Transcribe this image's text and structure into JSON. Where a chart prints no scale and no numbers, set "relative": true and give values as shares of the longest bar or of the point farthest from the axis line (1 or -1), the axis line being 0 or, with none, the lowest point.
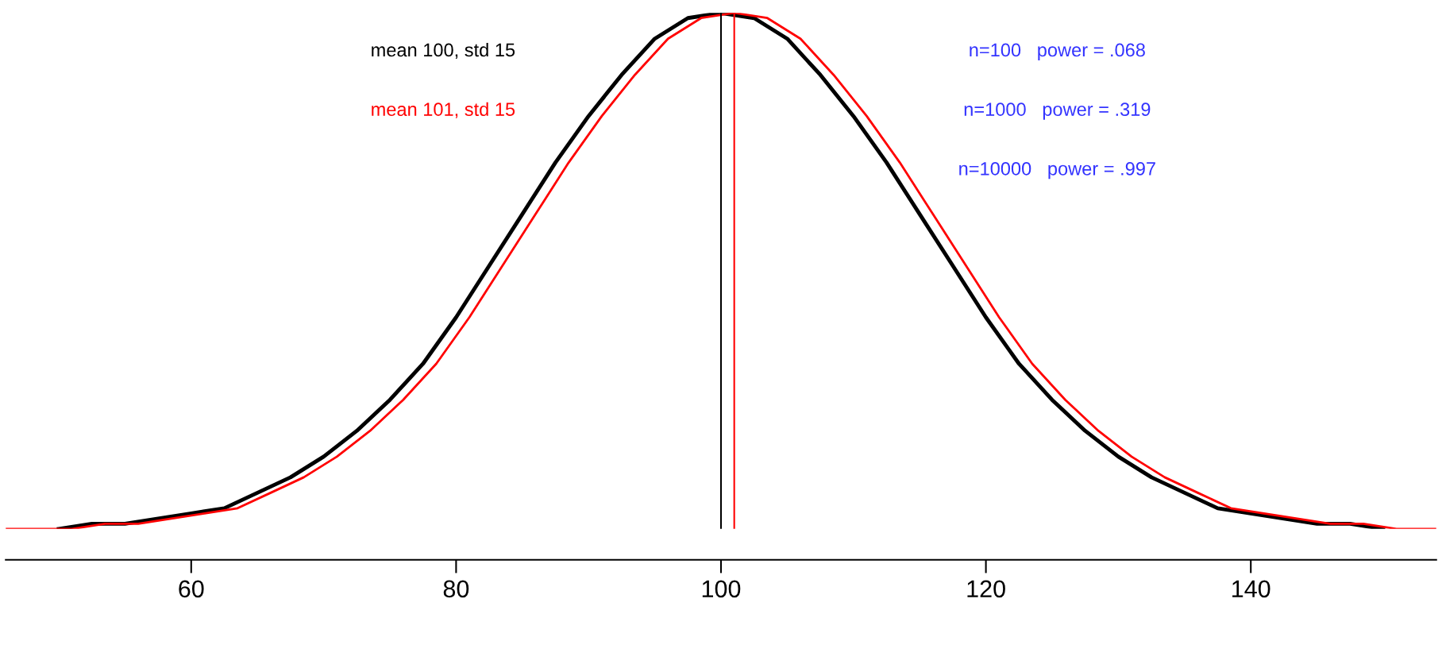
{
  "chart_data": {
    "type": "line",
    "relative": true,
    "xlim": [
      46,
      154
    ],
    "xticks": [
      60,
      80,
      100,
      120,
      140
    ],
    "series": [
      {
        "name": "mean 100, std 15",
        "color": "#000000",
        "x": [
          50,
          52.5,
          55,
          57.5,
          60,
          62.5,
          65,
          67.5,
          70,
          72.5,
          75,
          77.5,
          80,
          82.5,
          85,
          87.5,
          90,
          92.5,
          95,
          97.5,
          100,
          102.5,
          105,
          107.5,
          110,
          112.5,
          115,
          117.5,
          120,
          122.5,
          125,
          127.5,
          130,
          132.5,
          135,
          137.5,
          140,
          142.5,
          145,
          147.5,
          150
        ],
        "values": [
          0.0,
          0.01,
          0.01,
          0.02,
          0.03,
          0.04,
          0.07,
          0.1,
          0.14,
          0.19,
          0.25,
          0.32,
          0.41,
          0.51,
          0.61,
          0.71,
          0.8,
          0.88,
          0.95,
          0.99,
          1,
          0.99,
          0.95,
          0.88,
          0.8,
          0.71,
          0.61,
          0.51,
          0.41,
          0.32,
          0.25,
          0.19,
          0.14,
          0.1,
          0.07,
          0.04,
          0.03,
          0.02,
          0.01,
          0.01,
          0.0
        ]
      },
      {
        "name": "mean 101, std 15",
        "color": "#ff0000",
        "x": [
          46,
          48.5,
          51,
          53.5,
          56,
          58.5,
          61,
          63.5,
          66,
          68.5,
          71,
          73.5,
          76,
          78.5,
          81,
          83.5,
          86,
          88.5,
          91,
          93.5,
          96,
          98.5,
          101,
          103.5,
          106,
          108.5,
          111,
          113.5,
          116,
          118.5,
          121,
          123.5,
          126,
          128.5,
          131,
          133.5,
          136,
          138.5,
          141,
          143.5,
          146,
          148.5,
          151,
          153.5,
          154
        ],
        "values": [
          0,
          0,
          0.0,
          0.01,
          0.01,
          0.02,
          0.03,
          0.04,
          0.07,
          0.1,
          0.14,
          0.19,
          0.25,
          0.32,
          0.41,
          0.51,
          0.61,
          0.71,
          0.8,
          0.88,
          0.95,
          0.99,
          1,
          0.99,
          0.95,
          0.88,
          0.8,
          0.71,
          0.61,
          0.51,
          0.41,
          0.32,
          0.25,
          0.19,
          0.14,
          0.1,
          0.07,
          0.04,
          0.03,
          0.02,
          0.01,
          0.01,
          0.0,
          0,
          0
        ]
      }
    ],
    "ref_lines": [
      {
        "axis": "x",
        "value": 100,
        "color": "#000000"
      },
      {
        "axis": "x",
        "value": 101,
        "color": "#ff0000"
      }
    ],
    "legend": "top left",
    "annotations": [
      "n=100   power = .068",
      "n=1000   power = .319",
      "n=10000   power = .997"
    ],
    "grid": false
  }
}
